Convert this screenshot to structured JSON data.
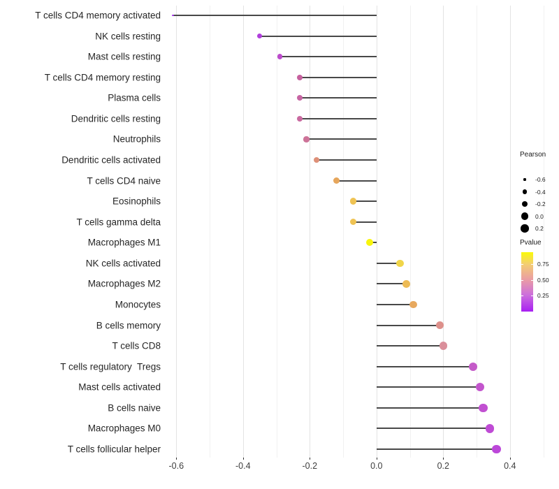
{
  "chart_data": {
    "type": "scatter",
    "subtype": "lollipop",
    "title": "",
    "xlabel": "",
    "ylabel": "",
    "xlim": [
      -0.63,
      0.52
    ],
    "grid": "vertical-only",
    "x_ticks": [
      {
        "label": "-0.6",
        "value": -0.6
      },
      {
        "label": "-0.4",
        "value": -0.4
      },
      {
        "label": "-0.2",
        "value": -0.2
      },
      {
        "label": "0.0",
        "value": 0.0
      },
      {
        "label": "0.2",
        "value": 0.2
      },
      {
        "label": "0.4",
        "value": 0.4
      }
    ],
    "x_minor_gridlines": [
      -0.5,
      -0.3,
      -0.1,
      0.1,
      0.3,
      0.5
    ],
    "points": [
      {
        "label": "T cells CD4 memory activated",
        "pearson": -0.61,
        "color": "#A431ED"
      },
      {
        "label": "NK cells resting",
        "pearson": -0.35,
        "color": "#B03EDC"
      },
      {
        "label": "Mast cells resting",
        "pearson": -0.29,
        "color": "#BC4BCC"
      },
      {
        "label": "T cells CD4 memory resting",
        "pearson": -0.23,
        "color": "#C6619E"
      },
      {
        "label": "Plasma cells",
        "pearson": -0.23,
        "color": "#C765A3"
      },
      {
        "label": "Dendritic cells resting",
        "pearson": -0.23,
        "color": "#C96AA0"
      },
      {
        "label": "Neutrophils",
        "pearson": -0.21,
        "color": "#CD7398"
      },
      {
        "label": "Dendritic cells activated",
        "pearson": -0.18,
        "color": "#DE9078"
      },
      {
        "label": "T cells CD4 naive",
        "pearson": -0.12,
        "color": "#E6A65C"
      },
      {
        "label": "Eosinophils",
        "pearson": -0.07,
        "color": "#EFC353"
      },
      {
        "label": "T cells gamma delta",
        "pearson": -0.07,
        "color": "#EFC353"
      },
      {
        "label": "Macrophages M1",
        "pearson": -0.02,
        "color": "#F8F50C"
      },
      {
        "label": "NK cells activated",
        "pearson": 0.07,
        "color": "#F0D549"
      },
      {
        "label": "Macrophages M2",
        "pearson": 0.09,
        "color": "#EDBB55"
      },
      {
        "label": "Monocytes",
        "pearson": 0.11,
        "color": "#E7A85E"
      },
      {
        "label": "B cells memory",
        "pearson": 0.19,
        "color": "#DD908B"
      },
      {
        "label": "T cells CD8",
        "pearson": 0.2,
        "color": "#DA8F9B"
      },
      {
        "label": "T cells regulatory  Tregs",
        "pearson": 0.29,
        "color": "#C45AC8"
      },
      {
        "label": "Mast cells activated",
        "pearson": 0.31,
        "color": "#C355CD"
      },
      {
        "label": "B cells naive",
        "pearson": 0.32,
        "color": "#C150D1"
      },
      {
        "label": "Macrophages M0",
        "pearson": 0.34,
        "color": "#BF4BD5"
      },
      {
        "label": "T cells follicular helper",
        "pearson": 0.36,
        "color": "#BC47D9"
      }
    ],
    "size_legend": {
      "title": "Pearson",
      "entries": [
        {
          "label": "-0.6",
          "value": -0.6
        },
        {
          "label": "-0.4",
          "value": -0.4
        },
        {
          "label": "-0.2",
          "value": -0.2
        },
        {
          "label": "0.0",
          "value": 0.0
        },
        {
          "label": "0.2",
          "value": 0.2
        }
      ],
      "dot_color": "#000000"
    },
    "color_legend": {
      "title": "Pvalue",
      "tick_labels": [
        {
          "label": "0.75",
          "frac_from_top": 0.2
        },
        {
          "label": "0.50",
          "frac_from_top": 0.465
        },
        {
          "label": "0.25",
          "frac_from_top": 0.725
        }
      ],
      "gradient_stops_top_to_bottom": [
        {
          "color": "#FAFA08",
          "pos": 0
        },
        {
          "color": "#F3CE72",
          "pos": 20
        },
        {
          "color": "#EA9DA4",
          "pos": 46
        },
        {
          "color": "#CC6FDC",
          "pos": 72
        },
        {
          "color": "#A81FF2",
          "pos": 100
        }
      ]
    },
    "style": {
      "stem_color": "#484848",
      "major_grid_color": "#e3e3e3",
      "minor_grid_color": "#f1f1f1",
      "axis_text_color": "#3d3d3d"
    }
  }
}
